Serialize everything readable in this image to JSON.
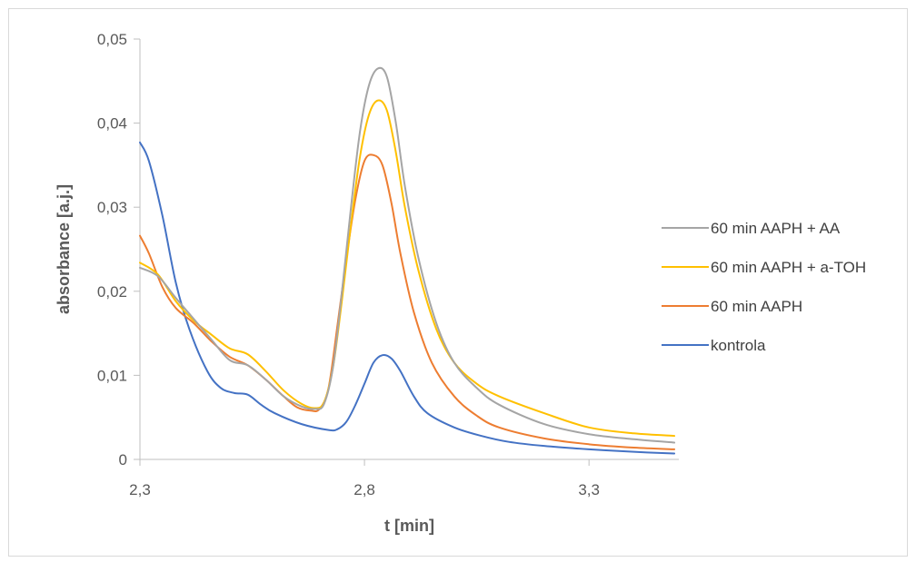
{
  "chart_data": {
    "type": "line",
    "title": "",
    "xlabel": "t [min]",
    "ylabel": "absorbance [a.j.]",
    "xlim": [
      2.3,
      3.5
    ],
    "ylim": [
      0,
      0.05
    ],
    "x_ticks": [
      2.3,
      2.8,
      3.3
    ],
    "x_tick_labels": [
      "2,3",
      "2,8",
      "3,3"
    ],
    "y_ticks": [
      0,
      0.01,
      0.02,
      0.03,
      0.04,
      0.05
    ],
    "y_tick_labels": [
      "0",
      "0,01",
      "0,02",
      "0,03",
      "0,04",
      "0,05"
    ],
    "grid": false,
    "legend_position": "right",
    "legend_order": [
      "60 min AAPH + AA",
      "60 min AAPH + a-TOH",
      "60 min AAPH",
      "kontrola"
    ],
    "series": [
      {
        "name": "kontrola",
        "color": "#4472C4",
        "points": [
          [
            2.3,
            0.0377
          ],
          [
            2.32,
            0.0355
          ],
          [
            2.35,
            0.029
          ],
          [
            2.38,
            0.021
          ],
          [
            2.41,
            0.0155
          ],
          [
            2.45,
            0.0105
          ],
          [
            2.48,
            0.0085
          ],
          [
            2.51,
            0.0079
          ],
          [
            2.54,
            0.0077
          ],
          [
            2.57,
            0.0065
          ],
          [
            2.6,
            0.0055
          ],
          [
            2.66,
            0.0042
          ],
          [
            2.72,
            0.0035
          ],
          [
            2.74,
            0.0036
          ],
          [
            2.76,
            0.0045
          ],
          [
            2.78,
            0.0065
          ],
          [
            2.8,
            0.009
          ],
          [
            2.82,
            0.0115
          ],
          [
            2.84,
            0.0124
          ],
          [
            2.86,
            0.012
          ],
          [
            2.88,
            0.0105
          ],
          [
            2.91,
            0.0075
          ],
          [
            2.94,
            0.0055
          ],
          [
            3.0,
            0.0038
          ],
          [
            3.06,
            0.0028
          ],
          [
            3.12,
            0.0021
          ],
          [
            3.2,
            0.0016
          ],
          [
            3.3,
            0.0012
          ],
          [
            3.4,
            0.0009
          ],
          [
            3.49,
            0.0007
          ]
        ]
      },
      {
        "name": "60 min AAPH",
        "color": "#ED7D31",
        "points": [
          [
            2.3,
            0.0266
          ],
          [
            2.32,
            0.0245
          ],
          [
            2.35,
            0.0205
          ],
          [
            2.38,
            0.018
          ],
          [
            2.42,
            0.0162
          ],
          [
            2.46,
            0.014
          ],
          [
            2.5,
            0.0122
          ],
          [
            2.54,
            0.0112
          ],
          [
            2.58,
            0.0095
          ],
          [
            2.62,
            0.0075
          ],
          [
            2.65,
            0.0062
          ],
          [
            2.68,
            0.0058
          ],
          [
            2.7,
            0.006
          ],
          [
            2.72,
            0.0085
          ],
          [
            2.74,
            0.016
          ],
          [
            2.76,
            0.024
          ],
          [
            2.78,
            0.031
          ],
          [
            2.8,
            0.0355
          ],
          [
            2.82,
            0.0362
          ],
          [
            2.84,
            0.035
          ],
          [
            2.86,
            0.0305
          ],
          [
            2.88,
            0.0245
          ],
          [
            2.91,
            0.0175
          ],
          [
            2.95,
            0.0115
          ],
          [
            3.0,
            0.0075
          ],
          [
            3.05,
            0.0052
          ],
          [
            3.1,
            0.0038
          ],
          [
            3.2,
            0.0025
          ],
          [
            3.3,
            0.0018
          ],
          [
            3.4,
            0.0014
          ],
          [
            3.49,
            0.0012
          ]
        ]
      },
      {
        "name": "60 min AAPH + a-TOH",
        "color": "#FFC000",
        "points": [
          [
            2.3,
            0.0234
          ],
          [
            2.34,
            0.022
          ],
          [
            2.38,
            0.0188
          ],
          [
            2.42,
            0.0165
          ],
          [
            2.46,
            0.0148
          ],
          [
            2.5,
            0.0132
          ],
          [
            2.54,
            0.0125
          ],
          [
            2.58,
            0.0105
          ],
          [
            2.62,
            0.0082
          ],
          [
            2.66,
            0.0066
          ],
          [
            2.69,
            0.0061
          ],
          [
            2.71,
            0.0068
          ],
          [
            2.73,
            0.011
          ],
          [
            2.75,
            0.019
          ],
          [
            2.77,
            0.028
          ],
          [
            2.79,
            0.036
          ],
          [
            2.81,
            0.041
          ],
          [
            2.83,
            0.0427
          ],
          [
            2.85,
            0.0415
          ],
          [
            2.87,
            0.0365
          ],
          [
            2.89,
            0.03
          ],
          [
            2.92,
            0.0225
          ],
          [
            2.96,
            0.0155
          ],
          [
            3.0,
            0.0115
          ],
          [
            3.05,
            0.009
          ],
          [
            3.1,
            0.0075
          ],
          [
            3.2,
            0.0055
          ],
          [
            3.3,
            0.0038
          ],
          [
            3.4,
            0.0031
          ],
          [
            3.49,
            0.0028
          ]
        ]
      },
      {
        "name": "60 min AAPH + AA",
        "color": "#A5A5A5",
        "points": [
          [
            2.3,
            0.0228
          ],
          [
            2.34,
            0.0218
          ],
          [
            2.38,
            0.0192
          ],
          [
            2.42,
            0.0167
          ],
          [
            2.46,
            0.0142
          ],
          [
            2.5,
            0.0118
          ],
          [
            2.54,
            0.0112
          ],
          [
            2.58,
            0.0095
          ],
          [
            2.62,
            0.0075
          ],
          [
            2.66,
            0.0063
          ],
          [
            2.69,
            0.006
          ],
          [
            2.71,
            0.0066
          ],
          [
            2.73,
            0.011
          ],
          [
            2.75,
            0.02
          ],
          [
            2.77,
            0.03
          ],
          [
            2.79,
            0.039
          ],
          [
            2.81,
            0.0445
          ],
          [
            2.83,
            0.0465
          ],
          [
            2.85,
            0.0455
          ],
          [
            2.87,
            0.04
          ],
          [
            2.89,
            0.0325
          ],
          [
            2.92,
            0.024
          ],
          [
            2.96,
            0.0162
          ],
          [
            3.0,
            0.0115
          ],
          [
            3.05,
            0.0085
          ],
          [
            3.1,
            0.0065
          ],
          [
            3.2,
            0.0042
          ],
          [
            3.3,
            0.003
          ],
          [
            3.4,
            0.0024
          ],
          [
            3.49,
            0.002
          ]
        ]
      }
    ]
  }
}
